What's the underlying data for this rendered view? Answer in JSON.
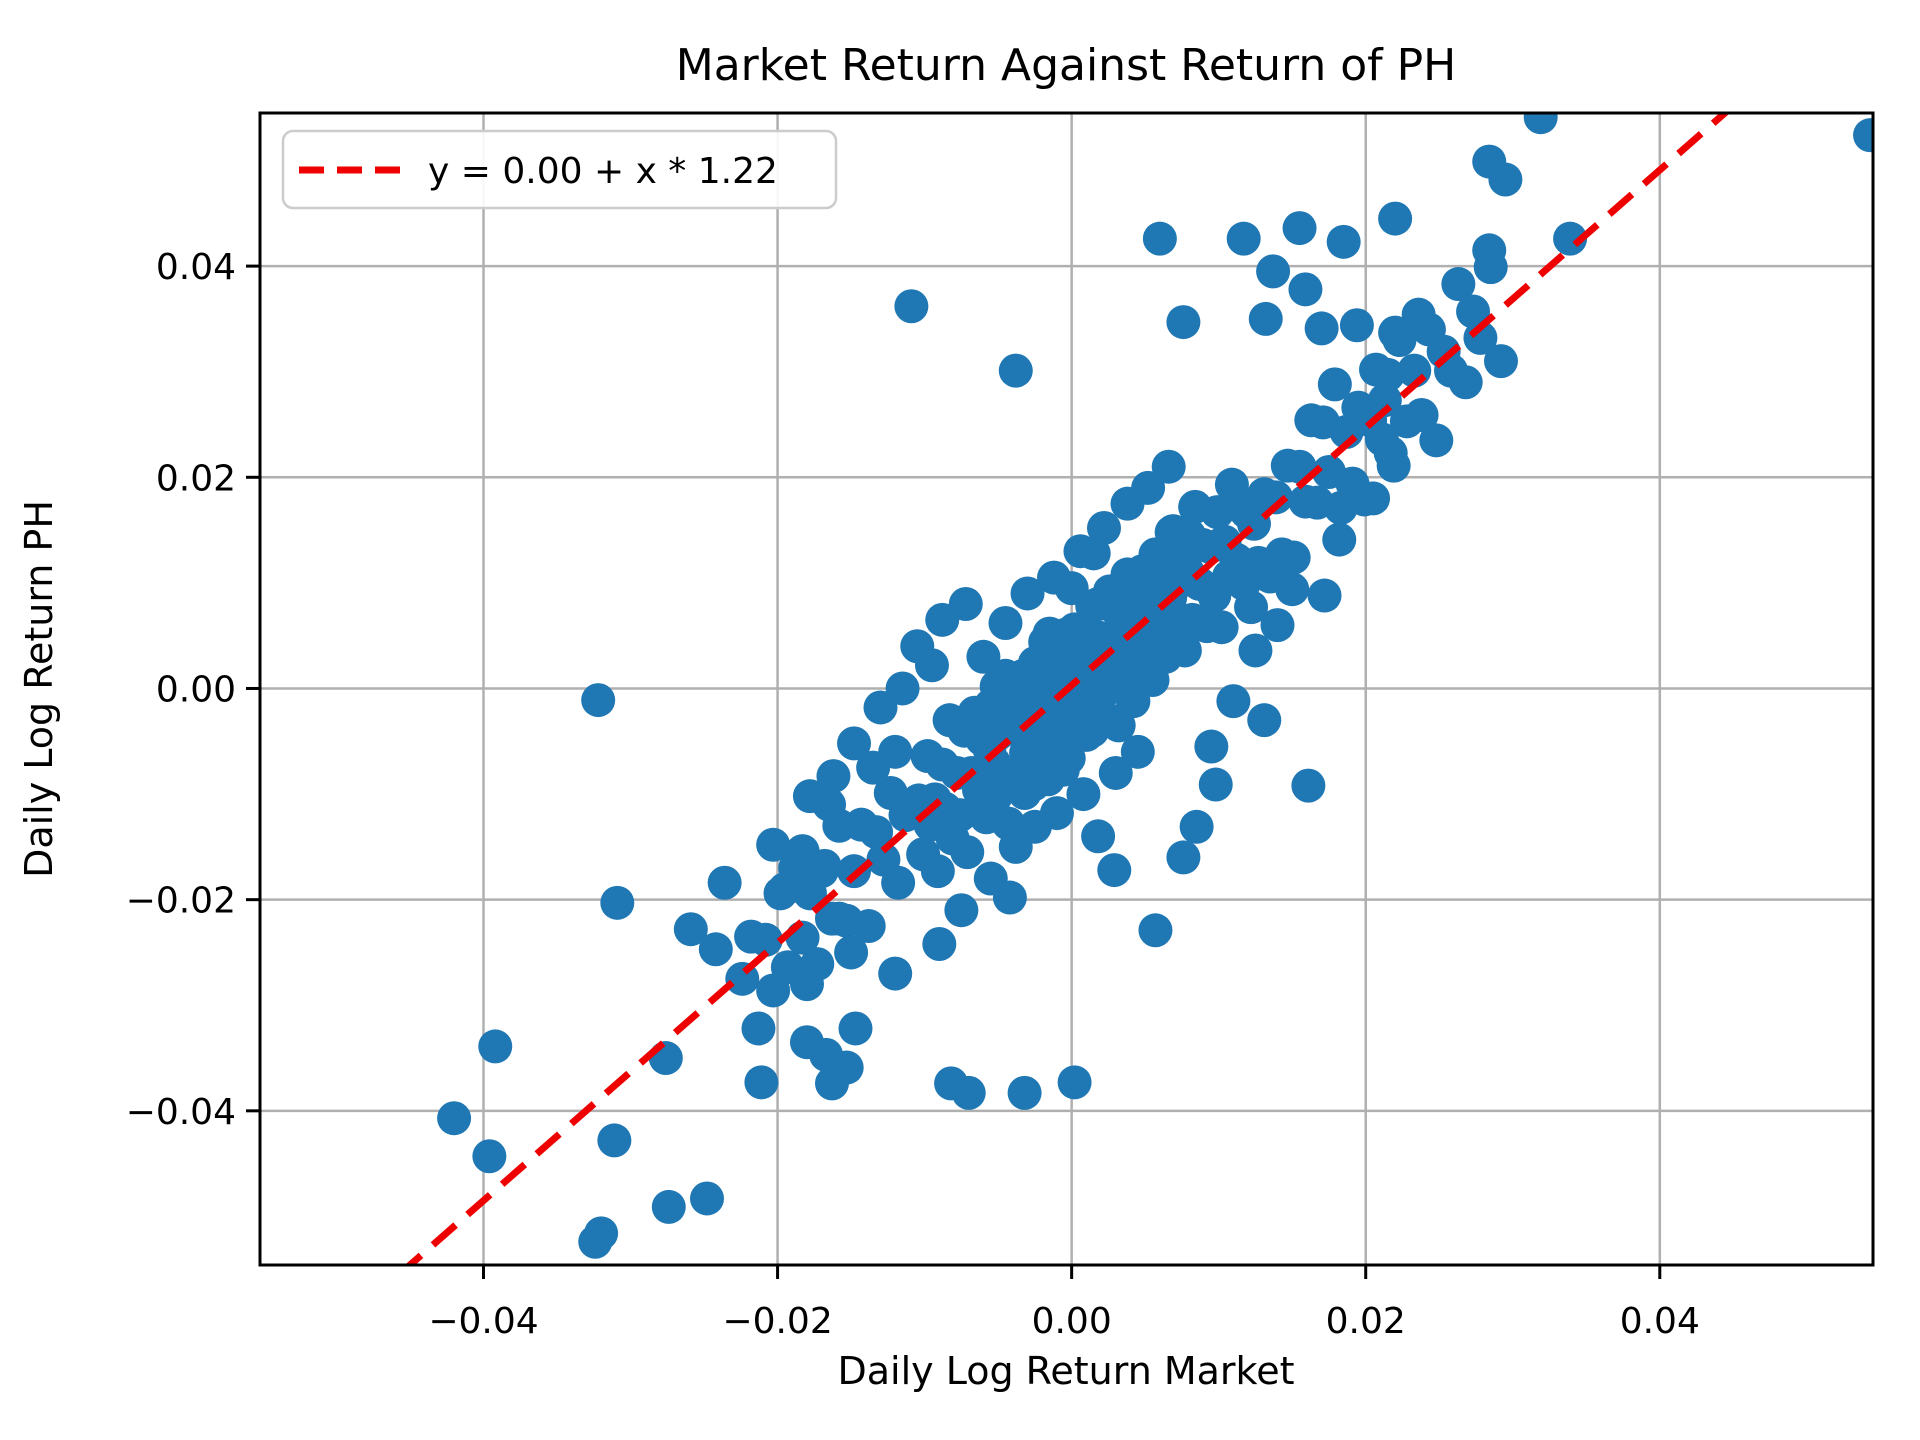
{
  "figure": {
    "background": "#ffffff"
  },
  "chart_data": {
    "type": "scatter",
    "title": "Market Return Against Return of PH",
    "xlabel": "Daily Log Return Market",
    "ylabel": "Daily Log Return PH",
    "xlim": [
      -0.0552,
      0.0545
    ],
    "ylim": [
      -0.0546,
      0.0545
    ],
    "xticks": [
      -0.04,
      -0.02,
      0.0,
      0.02,
      0.04
    ],
    "yticks": [
      -0.04,
      -0.02,
      0.0,
      0.02,
      0.04
    ],
    "grid": true,
    "grid_color": "#b0b0b0",
    "spine_color": "#000000",
    "marker_color": "#1f77b4",
    "marker_radius_px": 17,
    "fit_line": {
      "label": "y = 0.00 + x * 1.22",
      "intercept": 0.0003,
      "slope": 1.22,
      "color": "#ee0000",
      "style": "dashed"
    },
    "legend": {
      "location": "upper left",
      "entries": [
        {
          "label": "y = 0.00 + x * 1.22",
          "color": "#ee0000",
          "style": "dashed"
        }
      ]
    },
    "points": [
      [
        0.0319,
        0.0541
      ],
      [
        0.0543,
        0.0524
      ],
      [
        0.0284,
        0.0499
      ],
      [
        0.0295,
        0.0482
      ],
      [
        0.0339,
        0.0426
      ],
      [
        0.022,
        0.0445
      ],
      [
        0.0155,
        0.0436
      ],
      [
        0.0117,
        0.0426
      ],
      [
        0.0185,
        0.0423
      ],
      [
        0.006,
        0.0426
      ],
      [
        0.0159,
        0.0378
      ],
      [
        0.0137,
        0.0395
      ],
      [
        0.0284,
        0.0415
      ],
      [
        -0.0109,
        0.0362
      ],
      [
        0.0076,
        0.0347
      ],
      [
        0.0132,
        0.035
      ],
      [
        0.017,
        0.0341
      ],
      [
        0.0194,
        0.0344
      ],
      [
        0.0236,
        0.0354
      ],
      [
        0.022,
        0.0337
      ],
      [
        -0.0038,
        0.0301
      ],
      [
        -0.0322,
        -0.0011
      ],
      [
        -0.0309,
        -0.0203
      ],
      [
        -0.0392,
        -0.0339
      ],
      [
        -0.042,
        -0.0407
      ],
      [
        -0.0396,
        -0.0443
      ],
      [
        -0.0311,
        -0.0428
      ],
      [
        -0.032,
        -0.0516
      ],
      [
        -0.0324,
        -0.0524
      ],
      [
        -0.0274,
        -0.0491
      ],
      [
        -0.0248,
        -0.0483
      ],
      [
        -0.0276,
        -0.035
      ],
      [
        -0.0236,
        -0.0184
      ],
      [
        -0.0259,
        -0.0228
      ],
      [
        -0.0242,
        -0.0247
      ],
      [
        -0.0224,
        -0.0275
      ],
      [
        -0.0203,
        -0.0148
      ],
      [
        -0.0183,
        -0.0154
      ],
      [
        -0.017,
        -0.0173
      ],
      [
        -0.0158,
        -0.0218
      ],
      [
        -0.018,
        -0.0335
      ],
      [
        -0.0167,
        -0.0347
      ],
      [
        -0.0147,
        -0.0322
      ],
      [
        -0.0153,
        -0.0359
      ],
      [
        -0.0188,
        -0.0184
      ],
      [
        -0.0211,
        -0.0373
      ],
      [
        -0.0163,
        -0.0374
      ],
      [
        -0.0082,
        -0.0374
      ],
      [
        -0.007,
        -0.0383
      ],
      [
        -0.0032,
        -0.0383
      ],
      [
        0.0002,
        -0.0373
      ],
      [
        0.0057,
        -0.0229
      ],
      [
        0.0076,
        -0.016
      ],
      [
        0.0085,
        -0.0131
      ],
      [
        0.0029,
        -0.0172
      ],
      [
        0.0161,
        -0.0092
      ],
      [
        0.0098,
        -0.0091
      ],
      [
        -0.0104,
        -0.0106
      ],
      [
        -0.0101,
        -0.0157
      ],
      [
        -0.0098,
        -0.0064
      ],
      [
        -0.0096,
        -0.0129
      ],
      [
        -0.0093,
        -0.0105
      ],
      [
        -0.0091,
        -0.0173
      ],
      [
        -0.0088,
        -0.0072
      ],
      [
        -0.0086,
        -0.0114
      ],
      [
        -0.0083,
        -0.003
      ],
      [
        -0.0081,
        -0.0142
      ],
      [
        -0.0078,
        -0.008
      ],
      [
        -0.0076,
        -0.012
      ],
      [
        -0.0073,
        -0.004
      ],
      [
        -0.0071,
        -0.0155
      ],
      [
        -0.0068,
        -0.008
      ],
      [
        -0.0066,
        -0.0023
      ],
      [
        -0.0063,
        -0.0096
      ],
      [
        -0.0061,
        -0.0048
      ],
      [
        -0.0058,
        -0.0122
      ],
      [
        -0.0056,
        -0.0057
      ],
      [
        -0.0053,
        -0.007
      ],
      [
        -0.0051,
        0.0002
      ],
      [
        -0.0048,
        -0.009
      ],
      [
        -0.0046,
        -0.0012
      ],
      [
        -0.0043,
        -0.0128
      ],
      [
        -0.0041,
        -0.0032
      ],
      [
        -0.0038,
        -0.0086
      ],
      [
        -0.0036,
        -0.0037
      ],
      [
        -0.0033,
        0.0012
      ],
      [
        -0.0031,
        -0.0061
      ],
      [
        -0.0028,
        -0.0001
      ],
      [
        -0.0026,
        -0.0091
      ],
      [
        -0.0023,
        -0.0003
      ],
      [
        -0.0021,
        -0.004
      ],
      [
        -0.0018,
        0.0044
      ],
      [
        -0.0016,
        -0.0022
      ],
      [
        -0.0013,
        0.0031
      ],
      [
        -0.0011,
        -0.005
      ],
      [
        -0.0008,
        0.0
      ],
      [
        -0.0006,
        -0.0077
      ],
      [
        -0.0003,
        0.0025
      ],
      [
        -0.0001,
        -0.0017
      ],
      [
        0.0002,
        0.0056
      ],
      [
        0.0004,
        -0.004
      ],
      [
        0.0007,
        0.0015
      ],
      [
        0.0009,
        0.0049
      ],
      [
        0.0012,
        -0.0013
      ],
      [
        0.0014,
        0.0078
      ],
      [
        0.0017,
        0.0013
      ],
      [
        0.0019,
        0.0043
      ],
      [
        0.0022,
        -0.0028
      ],
      [
        0.0024,
        0.0042
      ],
      [
        0.0027,
        0.0001
      ],
      [
        0.0029,
        0.0077
      ],
      [
        0.0032,
        -0.0035
      ],
      [
        0.0034,
        0.0065
      ],
      [
        0.0037,
        0.0027
      ],
      [
        0.0039,
        0.0084
      ],
      [
        0.0042,
        -0.0012
      ],
      [
        0.0044,
        0.0063
      ],
      [
        0.0047,
        0.0107
      ],
      [
        0.0049,
        0.0019
      ],
      [
        0.0052,
        0.008
      ],
      [
        0.0054,
        0.004
      ],
      [
        0.0057,
        0.0127
      ],
      [
        0.0059,
        0.0061
      ],
      [
        0.0062,
        0.0106
      ],
      [
        0.0064,
        0.003
      ],
      [
        0.0067,
        0.0086
      ],
      [
        0.0069,
        0.0149
      ],
      [
        0.0072,
        0.0066
      ],
      [
        0.0074,
        0.0129
      ],
      [
        0.0077,
        0.0036
      ],
      [
        0.0079,
        0.011
      ],
      [
        0.0082,
        0.0065
      ],
      [
        0.0084,
        0.0172
      ],
      [
        0.0087,
        0.0099
      ],
      [
        0.0089,
        0.0136
      ],
      [
        0.0092,
        0.0059
      ],
      [
        0.0094,
        0.0134
      ],
      [
        0.0097,
        0.0088
      ],
      [
        0.0099,
        0.0167
      ],
      [
        0.0102,
        0.0058
      ],
      [
        0.0104,
        0.0139
      ],
      [
        0.0107,
        0.0106
      ],
      [
        0.0109,
        0.0193
      ],
      [
        0.0112,
        0.0122
      ],
      [
        0.0114,
        0.0173
      ],
      [
        0.0117,
        0.0099
      ],
      [
        0.0119,
        0.0167
      ],
      [
        0.0122,
        0.0077
      ],
      [
        0.0124,
        0.0156
      ],
      [
        -0.0059,
        -0.0046
      ],
      [
        -0.0057,
        -0.0076
      ],
      [
        -0.0055,
        -0.0016
      ],
      [
        -0.0052,
        -0.0103
      ],
      [
        -0.005,
        -0.0043
      ],
      [
        -0.0047,
        -0.0081
      ],
      [
        -0.0045,
        0.0012
      ],
      [
        -0.0042,
        -0.0087
      ],
      [
        -0.004,
        -0.0038
      ],
      [
        -0.0037,
        -0.0092
      ],
      [
        -0.0035,
        -0.0011
      ],
      [
        -0.0032,
        -0.0099
      ],
      [
        -0.003,
        -0.0016
      ],
      [
        -0.0027,
        -0.005
      ],
      [
        -0.0025,
        0.0024
      ],
      [
        -0.0022,
        -0.0055
      ],
      [
        -0.002,
        0.0019
      ],
      [
        -0.0017,
        -0.003
      ],
      [
        -0.0015,
        0.0052
      ],
      [
        -0.0012,
        -0.0067
      ],
      [
        -0.001,
        0.0003
      ],
      [
        -0.0007,
        -0.0048
      ],
      [
        -0.0005,
        0.0022
      ],
      [
        -0.0002,
        -0.0066
      ],
      [
        0.0,
        0.0006
      ],
      [
        0.0003,
        0.0053
      ],
      [
        0.0005,
        -0.0015
      ],
      [
        0.0008,
        0.0045
      ],
      [
        0.001,
        -0.0044
      ],
      [
        0.0013,
        0.0029
      ],
      [
        0.0015,
        -0.0024
      ],
      [
        0.0018,
        0.008
      ],
      [
        0.002,
        -0.0001
      ],
      [
        0.0023,
        0.0045
      ],
      [
        0.0025,
        0.0
      ],
      [
        0.0028,
        0.0078
      ],
      [
        0.003,
        -0.0031
      ],
      [
        0.0033,
        0.005
      ],
      [
        0.0035,
        0.0029
      ],
      [
        0.0038,
        0.0108
      ],
      [
        0.004,
        0.0012
      ],
      [
        0.0043,
        0.0076
      ],
      [
        0.0045,
        0.0048
      ],
      [
        0.0048,
        0.0111
      ],
      [
        0.005,
        0.0015
      ],
      [
        0.0053,
        0.0084
      ],
      [
        0.0055,
        0.0008
      ],
      [
        0.0058,
        0.0104
      ],
      [
        0.006,
        0.0061
      ],
      [
        0.0063,
        0.0117
      ],
      [
        0.0065,
        0.0053
      ],
      [
        0.0068,
        0.0148
      ],
      [
        0.007,
        0.0067
      ],
      [
        0.0073,
        0.0118
      ],
      [
        0.0075,
        0.0038
      ],
      [
        0.0078,
        0.0103
      ],
      [
        0.008,
        0.0145
      ],
      [
        -0.0029,
        -0.007
      ],
      [
        -0.0024,
        -0.0007
      ],
      [
        -0.0019,
        -0.0084
      ],
      [
        -0.0014,
        -0.0003
      ],
      [
        -0.0009,
        -0.0054
      ],
      [
        -0.0004,
        0.0051
      ],
      [
        0.0001,
        -0.0015
      ],
      [
        0.0006,
        0.0045
      ],
      [
        0.0011,
        -0.0037
      ],
      [
        0.0016,
        0.0047
      ],
      [
        0.0021,
        0.0017
      ],
      [
        0.0026,
        0.0092
      ],
      [
        0.0031,
        0.0006
      ],
      [
        0.0036,
        0.0064
      ],
      [
        -0.0026,
        -0.0077
      ],
      [
        -0.0021,
        -0.0014
      ],
      [
        -0.0016,
        -0.0086
      ],
      [
        -0.0011,
        0.0023
      ],
      [
        -0.0006,
        -0.003
      ],
      [
        -0.0001,
        0.0052
      ],
      [
        0.0004,
        0.0
      ],
      [
        0.0009,
        0.0052
      ],
      [
        0.0014,
        -0.004
      ],
      [
        0.0019,
        0.0048
      ],
      [
        0.0024,
        0.0014
      ],
      [
        -0.0218,
        -0.0235
      ],
      [
        -0.0213,
        -0.0322
      ],
      [
        -0.0208,
        -0.0238
      ],
      [
        -0.0203,
        -0.0286
      ],
      [
        -0.0198,
        -0.0194
      ],
      [
        -0.0193,
        -0.0264
      ],
      [
        -0.0188,
        -0.017
      ],
      [
        -0.0183,
        -0.0236
      ],
      [
        -0.0178,
        -0.0194
      ],
      [
        -0.0173,
        -0.0261
      ],
      [
        -0.0168,
        -0.0168
      ],
      [
        -0.0163,
        -0.0218
      ],
      [
        -0.0158,
        -0.013
      ],
      [
        -0.0153,
        -0.022
      ],
      [
        -0.0148,
        -0.0173
      ],
      [
        -0.0143,
        -0.0129
      ],
      [
        -0.0138,
        -0.0225
      ],
      [
        -0.0133,
        -0.0136
      ],
      [
        -0.0128,
        -0.0162
      ],
      [
        -0.0123,
        -0.0099
      ],
      [
        -0.0118,
        -0.0184
      ],
      [
        -0.0113,
        -0.012
      ],
      [
        -0.012,
        -0.006
      ],
      [
        -0.0135,
        -0.0075
      ],
      [
        -0.015,
        -0.025
      ],
      [
        -0.0165,
        -0.011
      ],
      [
        -0.018,
        -0.028
      ],
      [
        -0.0195,
        -0.019
      ],
      [
        0.0127,
        0.0119
      ],
      [
        0.0131,
        0.0184
      ],
      [
        0.0135,
        0.0106
      ],
      [
        0.0139,
        0.0181
      ],
      [
        0.0143,
        0.0127
      ],
      [
        0.0147,
        0.0211
      ],
      [
        0.0151,
        0.0124
      ],
      [
        0.0155,
        0.021
      ],
      [
        0.0159,
        0.0177
      ],
      [
        0.0163,
        0.0254
      ],
      [
        0.0167,
        0.0176
      ],
      [
        0.0171,
        0.0252
      ],
      [
        0.0175,
        0.0205
      ],
      [
        0.0179,
        0.0288
      ],
      [
        0.0183,
        0.0171
      ],
      [
        0.0187,
        0.0243
      ],
      [
        0.0191,
        0.0194
      ],
      [
        0.0195,
        0.0266
      ],
      [
        0.0199,
        0.0179
      ],
      [
        0.0203,
        0.0254
      ],
      [
        0.0207,
        0.0302
      ],
      [
        0.0211,
        0.0236
      ],
      [
        0.0215,
        0.0297
      ],
      [
        0.0219,
        0.0211
      ],
      [
        0.0213,
        0.0273
      ],
      [
        0.0217,
        0.0223
      ],
      [
        0.0223,
        0.033
      ],
      [
        0.0228,
        0.0253
      ],
      [
        0.0233,
        0.0301
      ],
      [
        0.0238,
        0.0259
      ],
      [
        0.0243,
        0.034
      ],
      [
        0.0248,
        0.0235
      ],
      [
        0.0253,
        0.0319
      ],
      [
        0.0258,
        0.0301
      ],
      [
        0.0263,
        0.0383
      ],
      [
        0.0268,
        0.029
      ],
      [
        0.0273,
        0.0357
      ],
      [
        0.0278,
        0.0332
      ],
      [
        0.0285,
        0.0399
      ],
      [
        0.0292,
        0.031
      ],
      [
        0.0125,
        0.0036
      ],
      [
        0.014,
        0.006
      ],
      [
        0.011,
        -0.0012
      ],
      [
        0.0095,
        -0.0055
      ],
      [
        0.015,
        0.0094
      ],
      [
        0.0131,
        -0.003
      ],
      [
        0.0172,
        0.0088
      ],
      [
        0.0182,
        0.0141
      ],
      [
        0.0205,
        0.018
      ],
      [
        -0.0115,
        0.0
      ],
      [
        -0.0095,
        0.0022
      ],
      [
        -0.013,
        -0.0018
      ],
      [
        -0.0088,
        0.0065
      ],
      [
        -0.0105,
        0.004
      ],
      [
        -0.0072,
        0.008
      ],
      [
        -0.006,
        0.003
      ],
      [
        -0.0148,
        -0.0052
      ],
      [
        -0.0162,
        -0.0083
      ],
      [
        -0.0178,
        -0.0102
      ],
      [
        -0.0055,
        -0.018
      ],
      [
        -0.0075,
        -0.021
      ],
      [
        -0.0038,
        -0.015
      ],
      [
        -0.009,
        -0.0242
      ],
      [
        -0.0025,
        -0.0131
      ],
      [
        -0.001,
        -0.0118
      ],
      [
        0.0008,
        -0.01
      ],
      [
        0.003,
        -0.008
      ],
      [
        0.0045,
        -0.006
      ],
      [
        -0.012,
        -0.027
      ],
      [
        -0.0042,
        -0.0198
      ],
      [
        0.0018,
        -0.014
      ],
      [
        -0.003,
        0.009
      ],
      [
        -0.0012,
        0.0105
      ],
      [
        0.0006,
        0.013
      ],
      [
        0.0022,
        0.0152
      ],
      [
        0.0038,
        0.0175
      ],
      [
        -0.0045,
        0.0062
      ],
      [
        0.0052,
        0.019
      ],
      [
        0.0066,
        0.021
      ],
      [
        0.0,
        0.0095
      ],
      [
        0.0015,
        0.0128
      ]
    ]
  }
}
